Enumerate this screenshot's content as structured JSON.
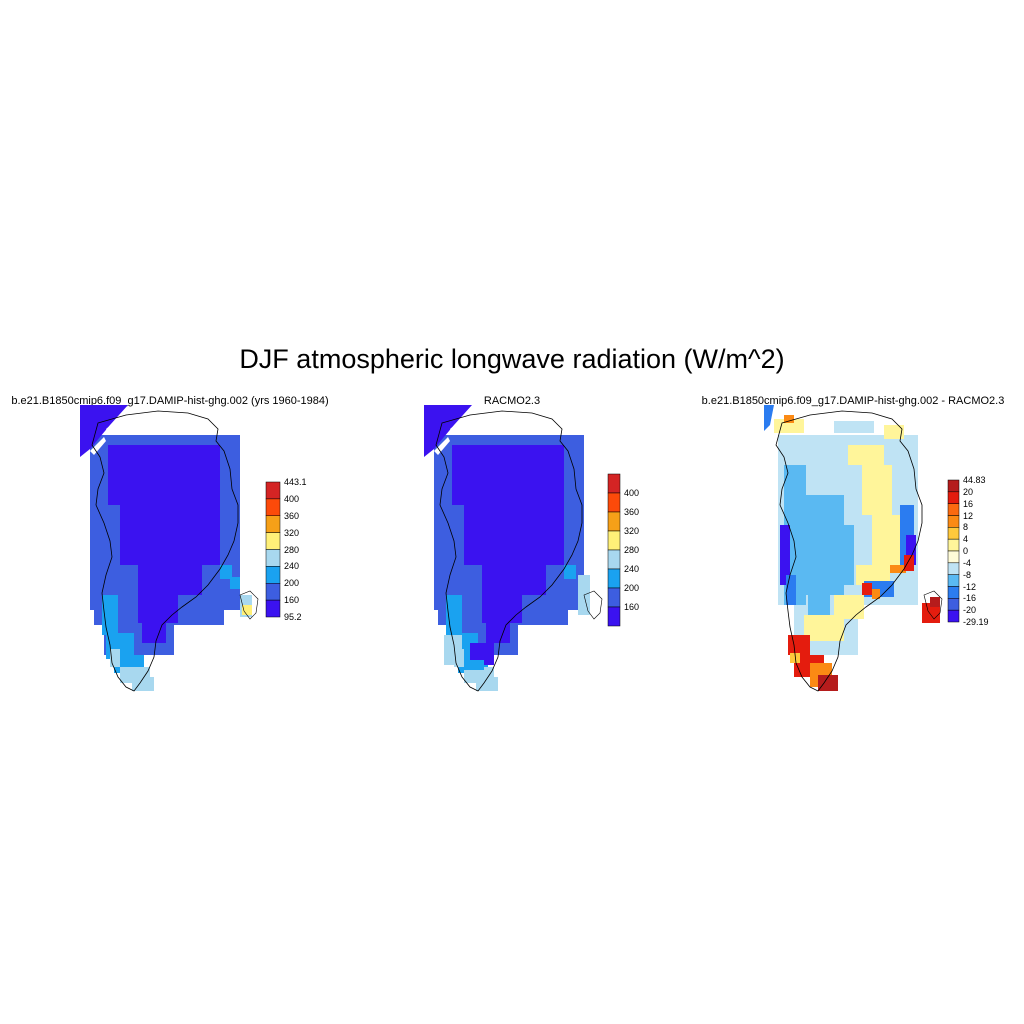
{
  "title": "DJF atmospheric longwave radiation (W/m^2)",
  "colors": {
    "c1": "#3b12f0",
    "c2": "#3d5ee0",
    "c3": "#1aa2f0",
    "c4": "#a8d8ef",
    "c5": "#fff078",
    "c6": "#f6a018",
    "c7": "#fc4a0a",
    "c8": "#d42424",
    "d_blue_dark": "#3b12f0",
    "d_blue": "#2b7cf0",
    "d_sky": "#5ab9f2",
    "d_pale": "#bfe3f4",
    "d_yellow": "#fff59a",
    "d_gold": "#ffc93c",
    "d_orange": "#fb8a14",
    "d_red": "#e41c0e",
    "d_darkred": "#b51c1c"
  },
  "panels": [
    {
      "title": "b.e21.B1850cmip6.f09_g17.DAMIP-hist-ghg.002 (yrs 1960-1984)",
      "colorbar": {
        "labels": [
          "443.1",
          "400",
          "360",
          "320",
          "280",
          "240",
          "200",
          "160",
          "95.2"
        ],
        "colors": [
          "#d42424",
          "#fc4a0a",
          "#f6a018",
          "#fff078",
          "#a8d8ef",
          "#1aa2f0",
          "#3d5ee0",
          "#3b12f0"
        ]
      }
    },
    {
      "title": "RACMO2.3",
      "colorbar": {
        "labels": [
          "400",
          "360",
          "320",
          "280",
          "240",
          "200",
          "160"
        ],
        "colors": [
          "#d42424",
          "#fc4a0a",
          "#f6a018",
          "#fff078",
          "#a8d8ef",
          "#1aa2f0",
          "#3d5ee0",
          "#3b12f0"
        ]
      }
    },
    {
      "title": "b.e21.B1850cmip6.f09_g17.DAMIP-hist-ghg.002 - RACMO2.3",
      "colorbar": {
        "labels": [
          "44.83",
          "20",
          "16",
          "12",
          "8",
          "4",
          "0",
          "-4",
          "-8",
          "-12",
          "-16",
          "-20",
          "-29.19"
        ],
        "colors": [
          "#b51c1c",
          "#e41c0e",
          "#fb6a10",
          "#fb8a14",
          "#ffc93c",
          "#fff59a",
          "#fffcd8",
          "#bfe3f4",
          "#5ab9f2",
          "#2b7cf0",
          "#3d5ee0",
          "#3b12f0"
        ]
      }
    }
  ]
}
